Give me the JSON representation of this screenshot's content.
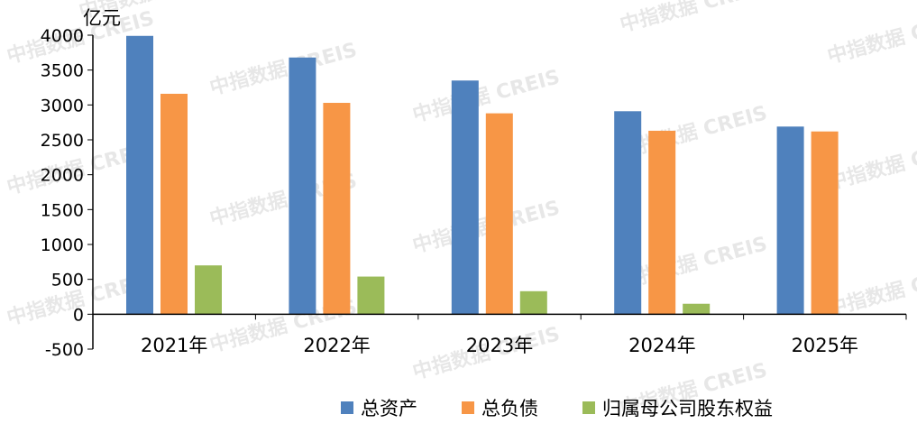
{
  "unit_label": "亿元",
  "watermark": "中指数据 CREIS",
  "colors": {
    "series": [
      "#4f81bd",
      "#f79646",
      "#9bbb59"
    ],
    "axis": "#000000"
  },
  "chart_data": {
    "type": "bar",
    "title": "",
    "xlabel": "",
    "ylabel": "亿元",
    "ylim": [
      -500,
      4000
    ],
    "yticks": [
      -500,
      0,
      500,
      1000,
      1500,
      2000,
      2500,
      3000,
      3500,
      4000
    ],
    "grid": false,
    "legend": "bottom",
    "categories": [
      "2021年",
      "2022年",
      "2023年",
      "2024年",
      "2025年"
    ],
    "series": [
      {
        "name": "总资产",
        "values": [
          3990,
          3680,
          3350,
          2910,
          2690
        ]
      },
      {
        "name": "总负债",
        "values": [
          3160,
          3030,
          2880,
          2630,
          2620
        ]
      },
      {
        "name": "归属母公司股东权益",
        "values": [
          700,
          540,
          330,
          150,
          null
        ]
      }
    ]
  }
}
